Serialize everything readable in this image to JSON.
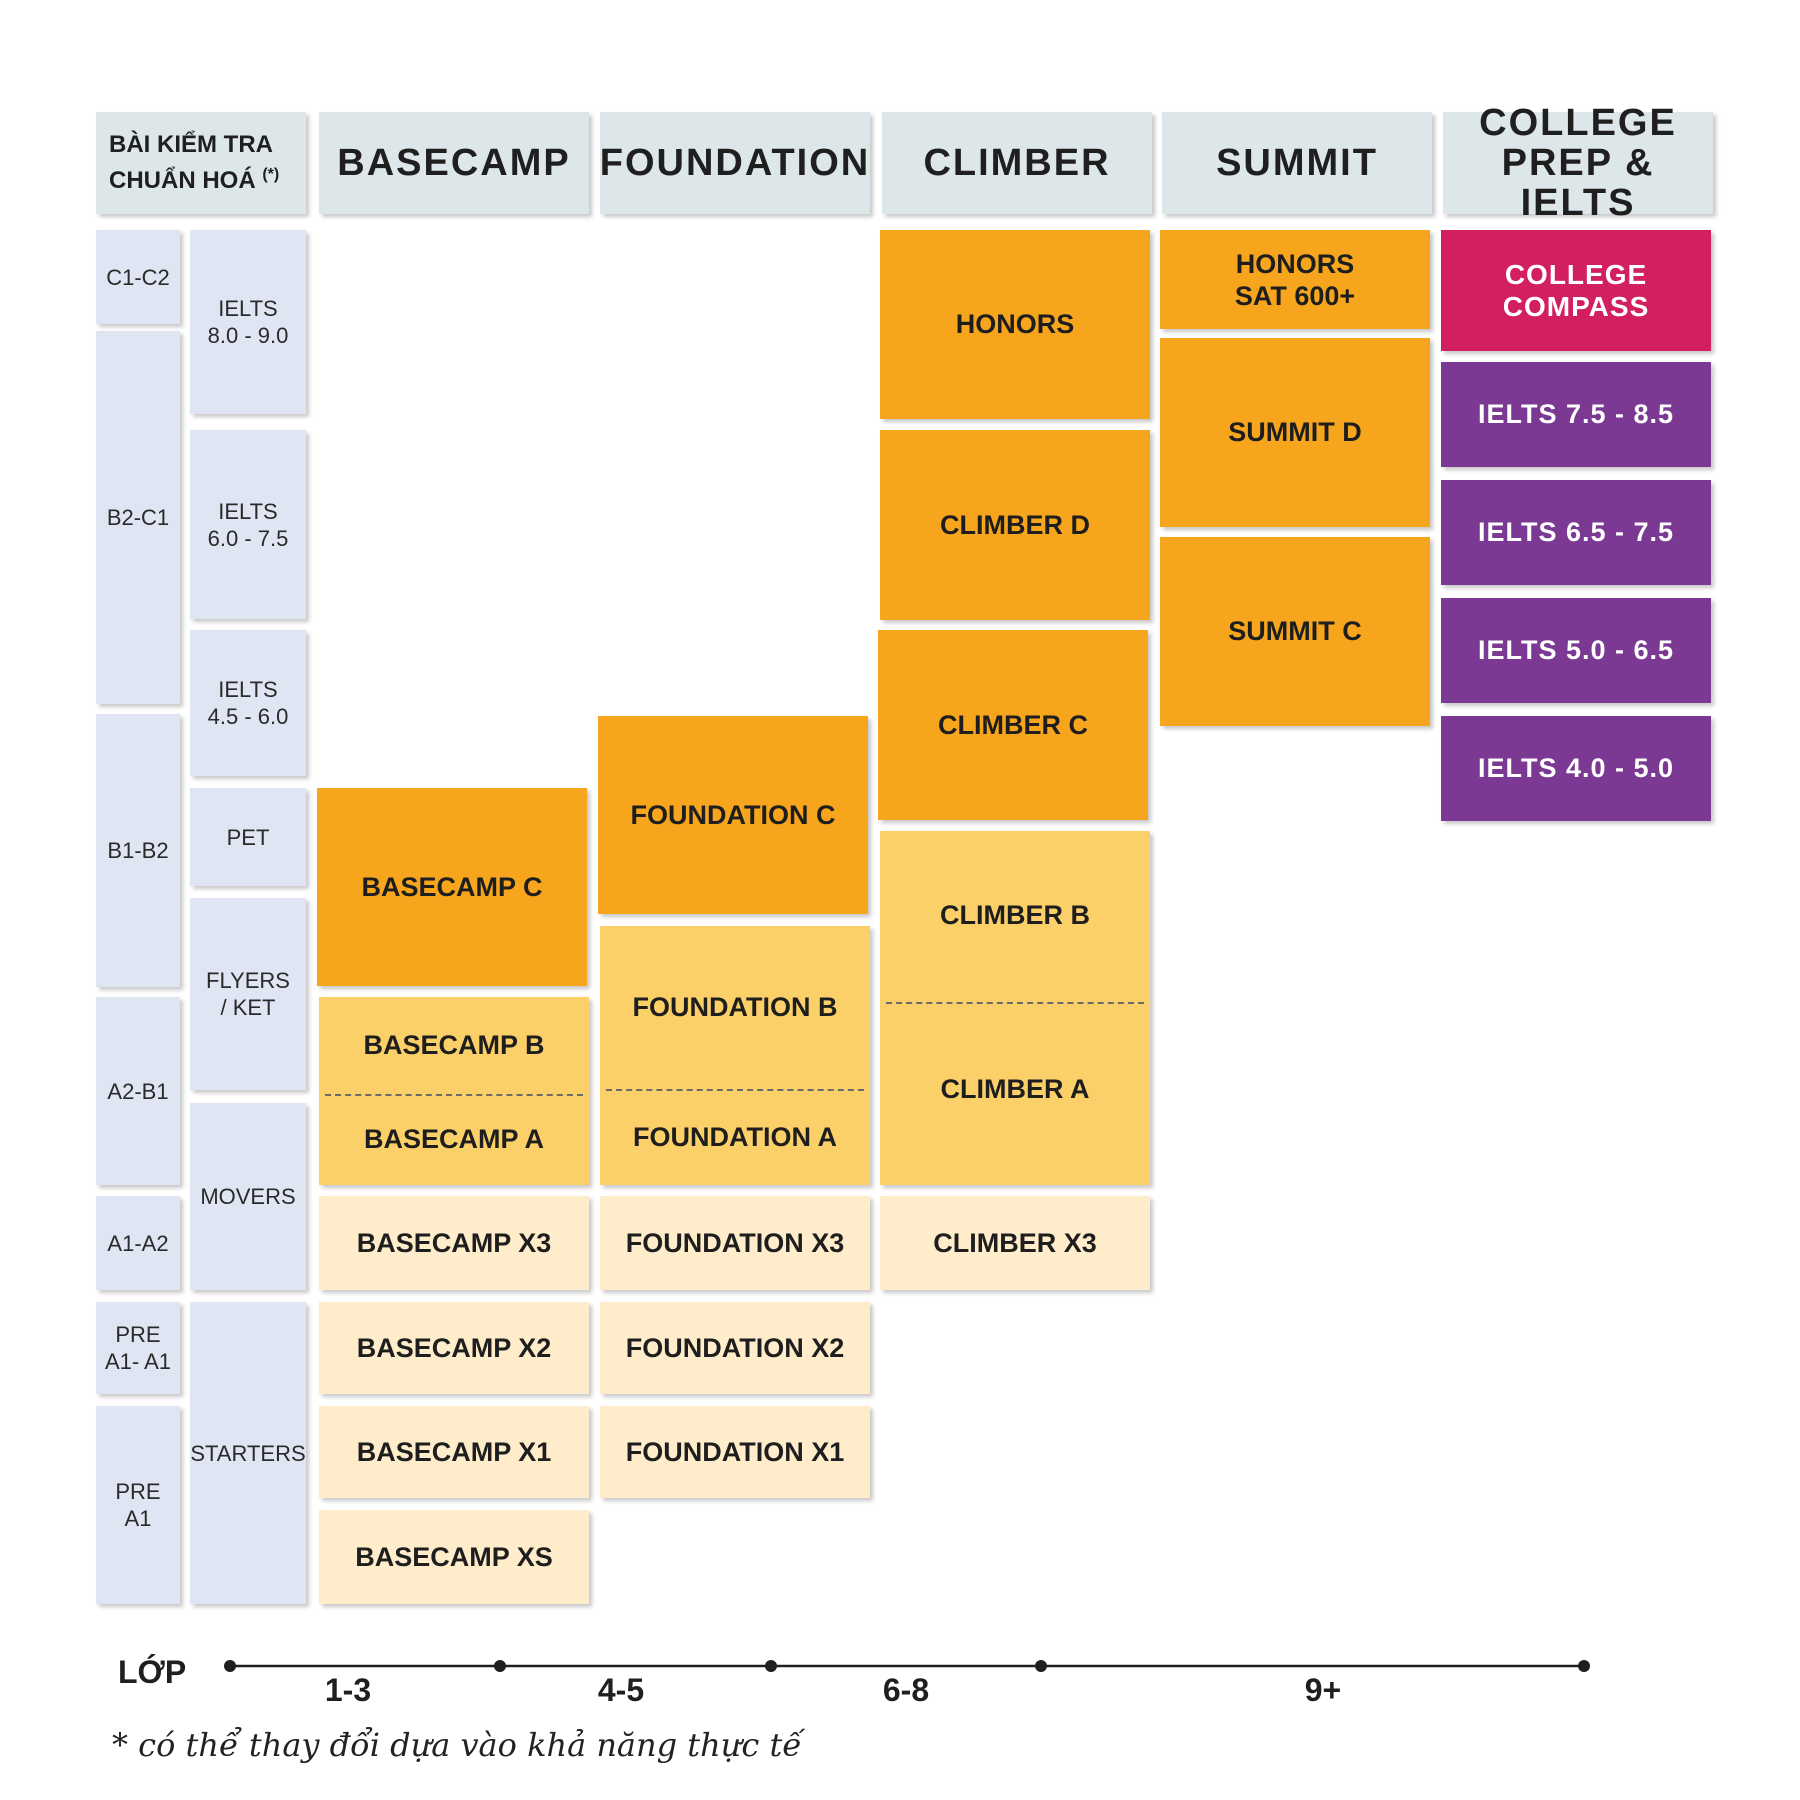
{
  "header": {
    "test_line1": "BÀI KIỂM TRA",
    "test_line2": "CHUẨN HOÁ",
    "test_mark": "(*)",
    "basecamp": "BASECAMP",
    "foundation": "FOUNDATION",
    "climber": "CLIMBER",
    "summit": "SUMMIT",
    "college_line1": "COLLEGE",
    "college_line2": "PREP & IELTS"
  },
  "cefr": {
    "c1c2": "C1-C2",
    "b2c1": "B2-C1",
    "b1b2": "B1-B2",
    "a2b1": "A2-B1",
    "a1a2": "A1-A2",
    "prea1a1_line1": "PRE",
    "prea1a1_line2": "A1- A1",
    "prea1_line1": "PRE",
    "prea1_line2": "A1"
  },
  "tests": {
    "ielts80_line1": "IELTS",
    "ielts80_line2": "8.0 - 9.0",
    "ielts60_line1": "IELTS",
    "ielts60_line2": "6.0 - 7.5",
    "ielts45_line1": "IELTS",
    "ielts45_line2": "4.5 - 6.0",
    "pet": "PET",
    "flyers_line1": "FLYERS",
    "flyers_line2": "/ KET",
    "movers": "MOVERS",
    "starters": "STARTERS"
  },
  "basecamp": {
    "c": "BASECAMP C",
    "b": "BASECAMP B",
    "a": "BASECAMP A",
    "x3": "BASECAMP X3",
    "x2": "BASECAMP X2",
    "x1": "BASECAMP X1",
    "xs": "BASECAMP XS"
  },
  "foundation": {
    "c": "FOUNDATION C",
    "b": "FOUNDATION B",
    "a": "FOUNDATION A",
    "x3": "FOUNDATION X3",
    "x2": "FOUNDATION X2",
    "x1": "FOUNDATION X1"
  },
  "climber": {
    "honors": "HONORS",
    "d": "CLIMBER D",
    "c": "CLIMBER C",
    "b": "CLIMBER B",
    "a": "CLIMBER A",
    "x3": "CLIMBER X3"
  },
  "summit": {
    "honors_line1": "HONORS",
    "honors_line2": "SAT 600+",
    "d": "SUMMIT D",
    "c": "SUMMIT C"
  },
  "college": {
    "compass_line1": "COLLEGE",
    "compass_line2": "COMPASS",
    "ielts75": "IELTS 7.5 - 8.5",
    "ielts65": "IELTS 6.5 - 7.5",
    "ielts50": "IELTS 5.0 - 6.5",
    "ielts40": "IELTS 4.0 - 5.0"
  },
  "axis": {
    "title": "LỚP",
    "ticks": [
      "1-3",
      "4-5",
      "6-8",
      "9+"
    ]
  },
  "footnote": "* có thể thay đổi dựa vào khả năng thực tế",
  "colors": {
    "header_bg": "#dde6e9",
    "level_bg": "#e0e5f4",
    "orange_dark": "#f7a51c",
    "orange_mid": "#fcd068",
    "orange_light": "#feeccb",
    "pink": "#d21f5f",
    "purple": "#7b3993"
  }
}
